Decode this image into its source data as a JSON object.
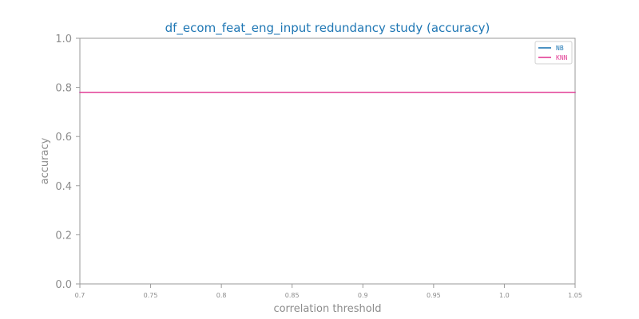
{
  "chart_data": {
    "type": "line",
    "title": "df_ecom_feat_eng_input redundancy study (accuracy)",
    "xlabel": "correlation threshold",
    "ylabel": "accuracy",
    "xlim": [
      0.7,
      1.05
    ],
    "ylim": [
      0.0,
      1.0
    ],
    "x_ticks": [
      "0.7",
      "0.75",
      "0.8",
      "0.85",
      "0.9",
      "0.95",
      "1.0",
      "1.05"
    ],
    "y_ticks": [
      "0.0",
      "0.2",
      "0.4",
      "0.6",
      "0.8",
      "1.0"
    ],
    "x": [
      0.7,
      0.75,
      0.8,
      0.85,
      0.9,
      0.95,
      1.0,
      1.05
    ],
    "series": [
      {
        "name": "NB",
        "color": "#1f77b4",
        "values": [
          0.78,
          0.78,
          0.78,
          0.78,
          0.78,
          0.78,
          0.78,
          0.78
        ]
      },
      {
        "name": "KNN",
        "color": "#e23e95",
        "values": [
          0.78,
          0.78,
          0.78,
          0.78,
          0.78,
          0.78,
          0.78,
          0.78
        ]
      }
    ],
    "grid": false,
    "legend_position": "top-right"
  }
}
